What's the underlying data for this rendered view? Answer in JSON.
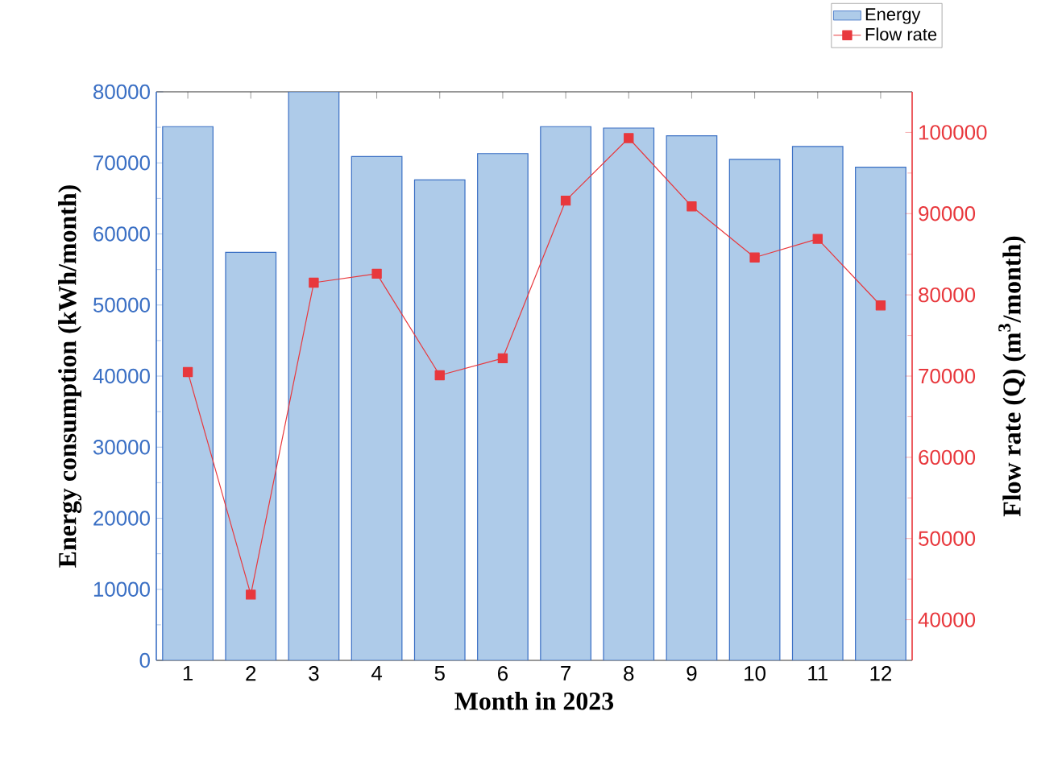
{
  "chart_data": {
    "type": "bar",
    "xlabel": "Month in 2023",
    "ylabel": "Energy consumption (kWh/month)",
    "y2label": "Flow rate (Q) (m$^{3}$/month)",
    "categories": [
      "1",
      "2",
      "3",
      "4",
      "5",
      "6",
      "7",
      "8",
      "9",
      "10",
      "11",
      "12"
    ],
    "series": [
      {
        "name": "Energy",
        "color": "#aecbe9",
        "values": [
          75100,
          57400,
          80000,
          70900,
          67600,
          71300,
          75100,
          74900,
          73800,
          70500,
          72300,
          69400
        ]
      },
      {
        "name": "Flow rate",
        "type": "line",
        "axis": "y2",
        "color": "#e8383d",
        "values": [
          70500,
          43100,
          81500,
          82600,
          70100,
          72200,
          91600,
          99300,
          90900,
          84600,
          86900,
          78700
        ]
      }
    ],
    "ylim": [
      0,
      80000
    ],
    "yticks": [
      0,
      10000,
      20000,
      30000,
      40000,
      50000,
      60000,
      70000,
      80000
    ],
    "y2lim": [
      35000,
      105000
    ],
    "y2ticks": [
      40000,
      50000,
      60000,
      70000,
      80000,
      90000,
      100000
    ],
    "marker": "square",
    "line_style": "solid",
    "legend": "top right",
    "grid": false
  }
}
